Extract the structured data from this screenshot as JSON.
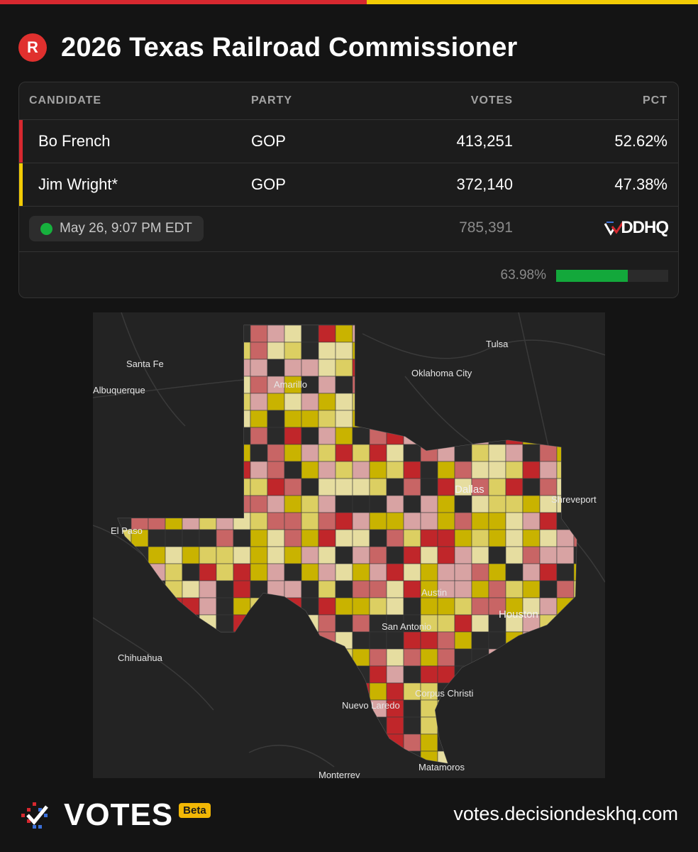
{
  "page": {
    "title": "2026 Texas Railroad Commissioner",
    "party_badge": "R"
  },
  "colors": {
    "french_red": "#d7282f",
    "wright_yellow": "#f2cb05",
    "reporting_green": "#13a83b",
    "background": "#141414"
  },
  "table": {
    "headers": {
      "candidate": "CANDIDATE",
      "party": "PARTY",
      "votes": "VOTES",
      "pct": "PCT"
    },
    "rows": [
      {
        "name": "Bo French",
        "party": "GOP",
        "votes": "413,251",
        "pct": "52.62%",
        "color": "#d7282f"
      },
      {
        "name": "Jim Wright*",
        "party": "GOP",
        "votes": "372,140",
        "pct": "47.38%",
        "color": "#f2cb05"
      }
    ],
    "updated": "May 26, 9:07 PM EDT",
    "total_votes": "785,391",
    "source_logo": "DDHQ",
    "reporting_pct": "63.98%",
    "reporting_fraction": 0.6398
  },
  "map": {
    "cities": [
      "Tulsa",
      "Santa Fe",
      "Oklahoma City",
      "Albuquerque",
      "Amarillo",
      "Dallas",
      "Shreveport",
      "El Paso",
      "Austin",
      "Houston",
      "San Antonio",
      "Chihuahua",
      "Corpus Christi",
      "Nuevo Laredo",
      "Matamoros",
      "Monterrey"
    ]
  },
  "footer": {
    "brand": "VOTES",
    "beta": "Beta",
    "url": "votes.decisiondeskhq.com"
  }
}
